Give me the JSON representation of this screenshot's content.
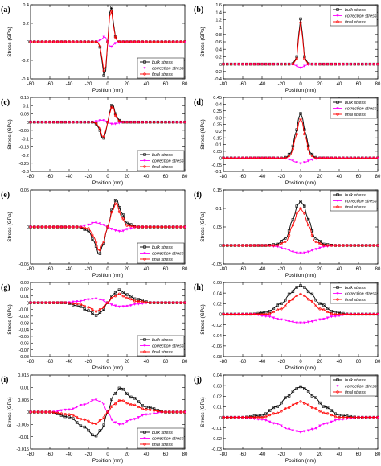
{
  "figure": {
    "common": {
      "xlabel": "Position (nm)",
      "ylabel": "Stress (GPa)",
      "xticks": [
        "-80",
        "-60",
        "-40",
        "-20",
        "0",
        "20",
        "40",
        "60",
        "80"
      ],
      "legend": [
        "bulk stress",
        "correction stress",
        "final stress"
      ]
    },
    "colors": {
      "bulk": "#000000",
      "correction": "#ff00ff",
      "final": "#ff0000"
    }
  },
  "chart_data": [
    {
      "panel": "(a)",
      "type": "line",
      "xlim": [
        -80,
        80
      ],
      "ylim": [
        -0.4,
        0.4
      ],
      "yticks": [
        "-0.4",
        "-0.2",
        "0",
        "0.2",
        "0.4"
      ],
      "ytick_values": [
        -0.4,
        -0.2,
        0,
        0.2,
        0.4
      ],
      "legend_position": "bottom-right",
      "x": [
        -12,
        -9,
        -6,
        -3,
        -1,
        0,
        1,
        3,
        6,
        9,
        12
      ],
      "series": [
        {
          "name": "bulk stress",
          "values": [
            0,
            -0.01,
            -0.2,
            -0.42,
            -0.2,
            0,
            0.2,
            0.43,
            0.2,
            0.01,
            0
          ]
        },
        {
          "name": "correction stress",
          "values": [
            0,
            0.01,
            0.03,
            0.06,
            0.03,
            0,
            -0.03,
            -0.06,
            -0.03,
            -0.01,
            0
          ]
        },
        {
          "name": "final stress",
          "values": [
            0,
            -0.01,
            -0.17,
            -0.36,
            -0.17,
            0,
            0.17,
            0.38,
            0.17,
            0.01,
            0
          ]
        }
      ]
    },
    {
      "panel": "(b)",
      "type": "line",
      "xlim": [
        -80,
        80
      ],
      "ylim": [
        -0.4,
        1.6
      ],
      "yticks": [
        "-0.4",
        "-0.2",
        "0",
        "0.2",
        "0.4",
        "0.6",
        "0.8",
        "1",
        "1.2",
        "1.4",
        "1.6"
      ],
      "ytick_values": [
        -0.4,
        -0.2,
        0,
        0.2,
        0.4,
        0.6,
        0.8,
        1,
        1.2,
        1.4,
        1.6
      ],
      "legend_position": "top-right",
      "x": [
        -12,
        -8,
        -4,
        -2,
        0,
        2,
        4,
        8,
        12
      ],
      "series": [
        {
          "name": "bulk stress",
          "values": [
            0,
            0.01,
            0.2,
            0.8,
            1.22,
            0.8,
            0.2,
            0.01,
            0
          ]
        },
        {
          "name": "correction stress",
          "values": [
            0,
            -0.01,
            -0.05,
            -0.08,
            -0.1,
            -0.08,
            -0.05,
            -0.01,
            0
          ]
        },
        {
          "name": "final stress",
          "values": [
            0,
            0,
            0.15,
            0.72,
            1.12,
            0.72,
            0.15,
            0,
            0
          ]
        }
      ]
    },
    {
      "panel": "(c)",
      "type": "line",
      "xlim": [
        -80,
        80
      ],
      "ylim": [
        -0.3,
        0.15
      ],
      "yticks": [
        "-0.3",
        "-0.25",
        "-0.2",
        "-0.15",
        "-0.1",
        "-0.05",
        "0",
        "0.05",
        "0.1",
        "0.15"
      ],
      "ytick_values": [
        -0.3,
        -0.25,
        -0.2,
        -0.15,
        -0.1,
        -0.05,
        0,
        0.05,
        0.1,
        0.15
      ],
      "legend_position": "bottom-right",
      "x": [
        -16,
        -12,
        -8,
        -5,
        -2,
        0,
        2,
        5,
        8,
        12,
        16
      ],
      "series": [
        {
          "name": "bulk stress",
          "values": [
            0,
            -0.01,
            -0.05,
            -0.11,
            -0.06,
            0,
            0.06,
            0.115,
            0.05,
            0.01,
            0
          ]
        },
        {
          "name": "correction stress",
          "values": [
            0,
            0.005,
            0.01,
            0.012,
            0.007,
            0,
            -0.007,
            -0.012,
            -0.01,
            -0.005,
            0
          ]
        },
        {
          "name": "final stress",
          "values": [
            0,
            -0.005,
            -0.04,
            -0.1,
            -0.05,
            0,
            0.05,
            0.103,
            0.04,
            0.005,
            0
          ]
        }
      ]
    },
    {
      "panel": "(d)",
      "type": "line",
      "xlim": [
        -80,
        80
      ],
      "ylim": [
        -0.1,
        0.45
      ],
      "yticks": [
        "-0.1",
        "-0.05",
        "0",
        "0.05",
        "0.1",
        "0.15",
        "0.2",
        "0.25",
        "0.3",
        "0.35",
        "0.4",
        "0.45"
      ],
      "ytick_values": [
        -0.1,
        -0.05,
        0,
        0.05,
        0.1,
        0.15,
        0.2,
        0.25,
        0.3,
        0.35,
        0.4,
        0.45
      ],
      "legend_position": "top-right",
      "x": [
        -20,
        -15,
        -10,
        -5,
        -2,
        0,
        2,
        5,
        10,
        15,
        20
      ],
      "series": [
        {
          "name": "bulk stress",
          "values": [
            0,
            0.005,
            0.04,
            0.18,
            0.3,
            0.33,
            0.3,
            0.18,
            0.04,
            0.005,
            0
          ]
        },
        {
          "name": "correction stress",
          "values": [
            0,
            -0.005,
            -0.015,
            -0.03,
            -0.038,
            -0.04,
            -0.038,
            -0.03,
            -0.015,
            -0.005,
            0
          ]
        },
        {
          "name": "final stress",
          "values": [
            0,
            0,
            0.025,
            0.15,
            0.26,
            0.29,
            0.26,
            0.15,
            0.025,
            0,
            0
          ]
        }
      ]
    },
    {
      "panel": "(e)",
      "type": "line",
      "xlim": [
        -80,
        80
      ],
      "ylim": [
        -0.05,
        0.05
      ],
      "yticks": [
        "-0.05",
        "0",
        "0.05"
      ],
      "ytick_values": [
        -0.05,
        0,
        0.05
      ],
      "legend_position": "bottom-right",
      "x": [
        -30,
        -20,
        -14,
        -9,
        -5,
        0,
        5,
        9,
        14,
        20,
        30
      ],
      "series": [
        {
          "name": "bulk stress",
          "values": [
            0,
            -0.005,
            -0.02,
            -0.038,
            -0.025,
            0,
            0.025,
            0.038,
            0.02,
            0.005,
            0
          ]
        },
        {
          "name": "correction stress",
          "values": [
            0,
            0.003,
            0.006,
            0.005,
            0.003,
            0,
            -0.003,
            -0.005,
            -0.006,
            -0.003,
            0
          ]
        },
        {
          "name": "final stress",
          "values": [
            0,
            -0.002,
            -0.014,
            -0.033,
            -0.022,
            0,
            0.022,
            0.033,
            0.014,
            0.002,
            0
          ]
        }
      ]
    },
    {
      "panel": "(f)",
      "type": "line",
      "xlim": [
        -80,
        80
      ],
      "ylim": [
        -0.05,
        0.15
      ],
      "yticks": [
        "-0.05",
        "0",
        "0.05",
        "0.1",
        "0.15"
      ],
      "ytick_values": [
        -0.05,
        0,
        0.05,
        0.1,
        0.15
      ],
      "legend_position": "top-right",
      "x": [
        -35,
        -25,
        -15,
        -8,
        -3,
        0,
        3,
        8,
        15,
        25,
        35
      ],
      "series": [
        {
          "name": "bulk stress",
          "values": [
            0,
            0.003,
            0.02,
            0.07,
            0.11,
            0.12,
            0.11,
            0.07,
            0.02,
            0.003,
            0
          ]
        },
        {
          "name": "correction stress",
          "values": [
            0,
            -0.003,
            -0.01,
            -0.017,
            -0.02,
            -0.02,
            -0.02,
            -0.017,
            -0.01,
            -0.003,
            0
          ]
        },
        {
          "name": "final stress",
          "values": [
            0,
            0,
            0.01,
            0.055,
            0.09,
            0.1,
            0.09,
            0.055,
            0.01,
            0,
            0
          ]
        }
      ]
    },
    {
      "panel": "(g)",
      "type": "line",
      "xlim": [
        -80,
        80
      ],
      "ylim": [
        -0.08,
        0.03
      ],
      "yticks": [
        "-0.08",
        "-0.07",
        "-0.06",
        "-0.05",
        "-0.04",
        "-0.03",
        "-0.02",
        "-0.01",
        "0",
        "0.01",
        "0.02",
        "0.03"
      ],
      "ytick_values": [
        -0.08,
        -0.07,
        -0.06,
        -0.05,
        -0.04,
        -0.03,
        -0.02,
        -0.01,
        0,
        0.01,
        0.02,
        0.03
      ],
      "legend_position": "bottom-right",
      "x": [
        -45,
        -30,
        -20,
        -12,
        -6,
        0,
        6,
        12,
        20,
        30,
        45
      ],
      "series": [
        {
          "name": "bulk stress",
          "values": [
            0,
            -0.005,
            -0.012,
            -0.019,
            -0.013,
            0,
            0.013,
            0.019,
            0.012,
            0.005,
            0
          ]
        },
        {
          "name": "correction stress",
          "values": [
            0,
            0.002,
            0.005,
            0.006,
            0.004,
            0,
            -0.004,
            -0.006,
            -0.005,
            -0.002,
            0
          ]
        },
        {
          "name": "final stress",
          "values": [
            0,
            -0.002,
            -0.007,
            -0.013,
            -0.009,
            0,
            0.009,
            0.013,
            0.007,
            0.002,
            0
          ]
        }
      ]
    },
    {
      "panel": "(h)",
      "type": "line",
      "xlim": [
        -80,
        80
      ],
      "ylim": [
        -0.08,
        0.06
      ],
      "yticks": [
        "-0.08",
        "-0.06",
        "-0.04",
        "-0.02",
        "0",
        "0.02",
        "0.04",
        "0.06"
      ],
      "ytick_values": [
        -0.08,
        -0.06,
        -0.04,
        -0.02,
        0,
        0.02,
        0.04,
        0.06
      ],
      "legend_position": "top-right",
      "x": [
        -50,
        -35,
        -20,
        -10,
        -4,
        0,
        4,
        10,
        20,
        35,
        50
      ],
      "series": [
        {
          "name": "bulk stress",
          "values": [
            0,
            0.004,
            0.02,
            0.04,
            0.051,
            0.054,
            0.051,
            0.04,
            0.02,
            0.004,
            0
          ]
        },
        {
          "name": "correction stress",
          "values": [
            0,
            -0.004,
            -0.01,
            -0.014,
            -0.016,
            -0.016,
            -0.016,
            -0.014,
            -0.01,
            -0.004,
            0
          ]
        },
        {
          "name": "final stress",
          "values": [
            0,
            0,
            0.01,
            0.026,
            0.035,
            0.038,
            0.035,
            0.026,
            0.01,
            0,
            0
          ]
        }
      ]
    },
    {
      "panel": "(i)",
      "type": "line",
      "xlim": [
        -80,
        80
      ],
      "ylim": [
        -0.015,
        0.015
      ],
      "yticks": [
        "-0.015",
        "-0.01",
        "-0.005",
        "0",
        "0.005",
        "0.01",
        "0.015"
      ],
      "ytick_values": [
        -0.015,
        -0.01,
        -0.005,
        0,
        0.005,
        0.01,
        0.015
      ],
      "legend_position": "bottom-right",
      "x": [
        -60,
        -40,
        -25,
        -13,
        -6,
        0,
        6,
        13,
        25,
        40,
        60
      ],
      "series": [
        {
          "name": "bulk stress",
          "values": [
            0,
            -0.002,
            -0.006,
            -0.0098,
            -0.007,
            0,
            0.007,
            0.0098,
            0.006,
            0.002,
            0
          ]
        },
        {
          "name": "correction stress",
          "values": [
            0,
            0.001,
            0.003,
            0.005,
            0.004,
            0,
            -0.004,
            -0.005,
            -0.003,
            -0.001,
            0
          ]
        },
        {
          "name": "final stress",
          "values": [
            0,
            -0.001,
            -0.003,
            -0.0048,
            -0.003,
            0,
            0.003,
            0.0048,
            0.003,
            0.001,
            0
          ]
        }
      ]
    },
    {
      "panel": "(j)",
      "type": "line",
      "xlim": [
        -80,
        80
      ],
      "ylim": [
        -0.03,
        0.04
      ],
      "yticks": [
        "-0.03",
        "-0.02",
        "-0.01",
        "0",
        "0.01",
        "0.02",
        "0.03",
        "0.04"
      ],
      "ytick_values": [
        -0.03,
        -0.02,
        -0.01,
        0,
        0.01,
        0.02,
        0.03,
        0.04
      ],
      "legend_position": "top-right",
      "x": [
        -60,
        -40,
        -25,
        -13,
        -5,
        0,
        5,
        13,
        25,
        40,
        60
      ],
      "series": [
        {
          "name": "bulk stress",
          "values": [
            0,
            0.002,
            0.01,
            0.02,
            0.027,
            0.029,
            0.027,
            0.02,
            0.01,
            0.002,
            0
          ]
        },
        {
          "name": "correction stress",
          "values": [
            0,
            -0.002,
            -0.006,
            -0.011,
            -0.013,
            -0.014,
            -0.013,
            -0.011,
            -0.006,
            -0.002,
            0
          ]
        },
        {
          "name": "final stress",
          "values": [
            0,
            0,
            0.004,
            0.009,
            0.013,
            0.015,
            0.013,
            0.009,
            0.004,
            0,
            0
          ]
        }
      ]
    }
  ]
}
